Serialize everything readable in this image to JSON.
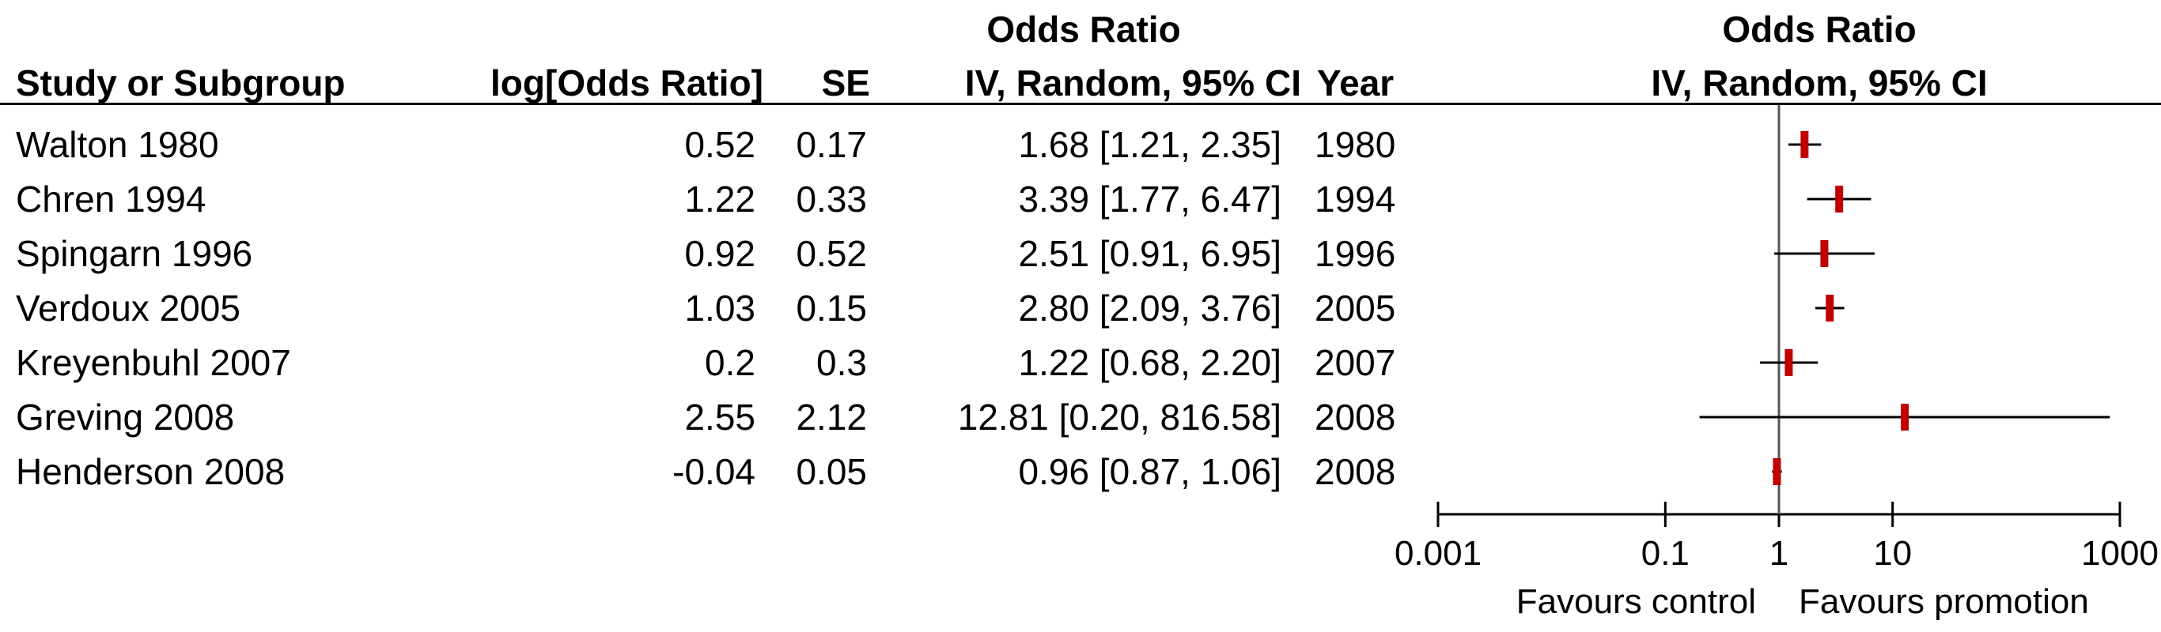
{
  "table": {
    "header_group": "Odds Ratio",
    "columns": {
      "study": "Study or Subgroup",
      "log_or": "log[Odds Ratio]",
      "se": "SE",
      "ci": "IV, Random, 95% CI",
      "year": "Year"
    },
    "rows": [
      {
        "study": "Walton 1980",
        "log_or": "0.52",
        "se": "0.17",
        "ci": "1.68 [1.21, 2.35]",
        "year": "1980"
      },
      {
        "study": "Chren 1994",
        "log_or": "1.22",
        "se": "0.33",
        "ci": "3.39 [1.77, 6.47]",
        "year": "1994"
      },
      {
        "study": "Spingarn 1996",
        "log_or": "0.92",
        "se": "0.52",
        "ci": "2.51 [0.91, 6.95]",
        "year": "1996"
      },
      {
        "study": "Verdoux 2005",
        "log_or": "1.03",
        "se": "0.15",
        "ci": "2.80 [2.09, 3.76]",
        "year": "2005"
      },
      {
        "study": "Kreyenbuhl 2007",
        "log_or": "0.2",
        "se": "0.3",
        "ci": "1.22 [0.68, 2.20]",
        "year": "2007"
      },
      {
        "study": "Greving 2008",
        "log_or": "2.55",
        "se": "2.12",
        "ci": "12.81 [0.20, 816.58]",
        "year": "2008"
      },
      {
        "study": "Henderson 2008",
        "log_or": "-0.04",
        "se": "0.05",
        "ci": "0.96 [0.87, 1.06]",
        "year": "2008"
      }
    ]
  },
  "plot": {
    "header_line1": "Odds Ratio",
    "header_line2": "IV, Random, 95% CI",
    "favours_left": "Favours control",
    "favours_right": "Favours promotion"
  },
  "chart_data": {
    "type": "forest",
    "x_scale": "log",
    "xlim": [
      0.001,
      1000
    ],
    "ticks": [
      0.001,
      0.1,
      1,
      10,
      1000
    ],
    "tick_labels": [
      "0.001",
      "0.1",
      "1",
      "10",
      "1000"
    ],
    "reference_line": 1,
    "marker_color": "#c00000",
    "series": [
      {
        "label": "Walton 1980",
        "or": 1.68,
        "lower": 1.21,
        "upper": 2.35
      },
      {
        "label": "Chren 1994",
        "or": 3.39,
        "lower": 1.77,
        "upper": 6.47
      },
      {
        "label": "Spingarn 1996",
        "or": 2.51,
        "lower": 0.91,
        "upper": 6.95
      },
      {
        "label": "Verdoux 2005",
        "or": 2.8,
        "lower": 2.09,
        "upper": 3.76
      },
      {
        "label": "Kreyenbuhl 2007",
        "or": 1.22,
        "lower": 0.68,
        "upper": 2.2
      },
      {
        "label": "Greving 2008",
        "or": 12.81,
        "lower": 0.2,
        "upper": 816.58
      },
      {
        "label": "Henderson 2008",
        "or": 0.96,
        "lower": 0.87,
        "upper": 1.06
      }
    ]
  }
}
